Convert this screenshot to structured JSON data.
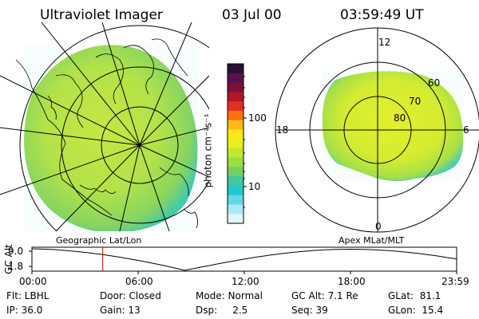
{
  "header": {
    "title": "Ultraviolet Imager",
    "date": "03 Jul 00",
    "time": "03:59:49 UT"
  },
  "colorbar": {
    "unit_label": "photon cm⁻²s⁻¹",
    "ticks": [
      "100",
      "10"
    ],
    "colors": [
      "#2a1030",
      "#5a1050",
      "#7a1040",
      "#b01828",
      "#e03020",
      "#ff7010",
      "#ffb818",
      "#ffe820",
      "#e8f020",
      "#c0e830",
      "#9ade40",
      "#72d060",
      "#40c8a0",
      "#20c8d0",
      "#60d8e8",
      "#a8eaf4",
      "#e0f6fa"
    ]
  },
  "left_panel": {
    "caption": "Geographic Lat/Lon"
  },
  "right_panel": {
    "caption": "Apex MLat/MLT",
    "mlt_labels": {
      "top": "12",
      "left": "18",
      "right": "6",
      "bottom": "0"
    },
    "mlat_labels": [
      "60",
      "70",
      "80"
    ]
  },
  "altitude_plot": {
    "axis_label": "GC Alt",
    "y_ticks": [
      "9.0",
      "1.8"
    ],
    "x_ticks": [
      "00:00",
      "06:00",
      "12:00",
      "18:00",
      "23:59"
    ],
    "current_time_hours": 4.0,
    "marker_color": "#cc0000"
  },
  "status": {
    "row1": [
      {
        "name": "flt",
        "text": "Flt: LBHL"
      },
      {
        "name": "door",
        "text": "Door: Closed"
      },
      {
        "name": "mode",
        "text": "Mode: Normal"
      },
      {
        "name": "gc-alt",
        "text": "GC Alt: 7.1 Re"
      },
      {
        "name": "glat",
        "text": "GLat:  81.1"
      }
    ],
    "row2": [
      {
        "name": "ip",
        "text": "IP: 36.0"
      },
      {
        "name": "gain",
        "text": "Gain: 13"
      },
      {
        "name": "dsp",
        "text": "Dsp:     2.5"
      },
      {
        "name": "seq",
        "text": "Seq: 39"
      },
      {
        "name": "glon",
        "text": "GLon:  15.4"
      }
    ]
  }
}
